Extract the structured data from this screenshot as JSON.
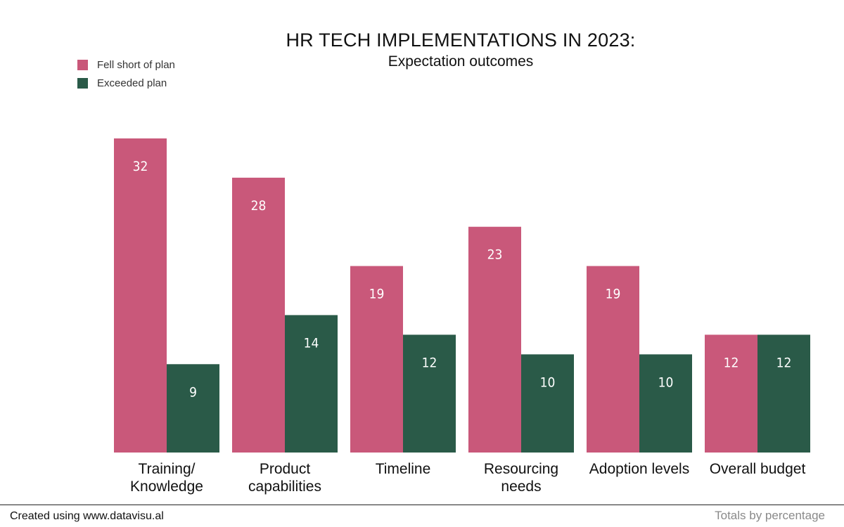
{
  "colors": {
    "fell_short": "#c9587a",
    "exceeded": "#2a5a48",
    "bar_label": "#ffffff",
    "axis_text": "#111111"
  },
  "chart_data": {
    "type": "bar",
    "title": "HR TECH IMPLEMENTATIONS IN 2023:",
    "subtitle": "Expectation outcomes",
    "xlabel": "",
    "ylabel": "",
    "ylim": [
      0,
      32
    ],
    "grid": false,
    "legend_position": "top-left",
    "categories": [
      [
        "Training/",
        "Knowledge"
      ],
      [
        "Product",
        "capabilities"
      ],
      [
        "Timeline"
      ],
      [
        "Resourcing",
        "needs"
      ],
      [
        "Adoption levels"
      ],
      [
        "Overall budget"
      ]
    ],
    "series": [
      {
        "name": "Fell short of plan",
        "values": [
          32,
          28,
          19,
          23,
          19,
          12
        ]
      },
      {
        "name": "Exceeded plan",
        "values": [
          9,
          14,
          12,
          10,
          10,
          12
        ]
      }
    ]
  },
  "footer": {
    "credit": "Created using www.datavisu.al",
    "note": "Totals by percentage"
  }
}
